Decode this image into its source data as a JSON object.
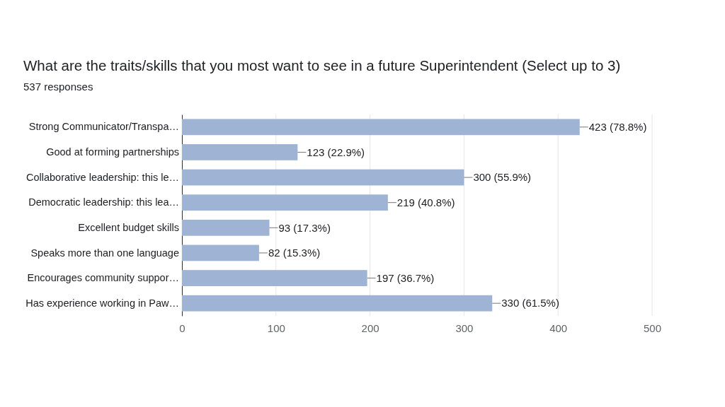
{
  "chart_data": {
    "type": "bar",
    "orientation": "horizontal",
    "title": "What are the traits/skills that you most want to see in a future Superintendent (Select up to 3)",
    "subtitle": "537 responses",
    "categories": [
      "Strong Communicator/Transpa…",
      "Good at forming partnerships",
      "Collaborative leadership: this le…",
      "Democratic leadership: this lea…",
      "Excellent budget skills",
      "Speaks more than one language",
      "Encourages community suppor…",
      "Has experience working in Paw…"
    ],
    "values": [
      423,
      123,
      300,
      219,
      93,
      82,
      197,
      330
    ],
    "value_labels": [
      "423 (78.8%)",
      "123 (22.9%)",
      "300 (55.9%)",
      "219 (40.8%)",
      "93 (17.3%)",
      "82 (15.3%)",
      "197 (36.7%)",
      "330 (61.5%)"
    ],
    "color": "#9fb3d4",
    "xlim": [
      0,
      500
    ],
    "xticks": [
      0,
      100,
      200,
      300,
      400,
      500
    ],
    "grid": "x"
  }
}
